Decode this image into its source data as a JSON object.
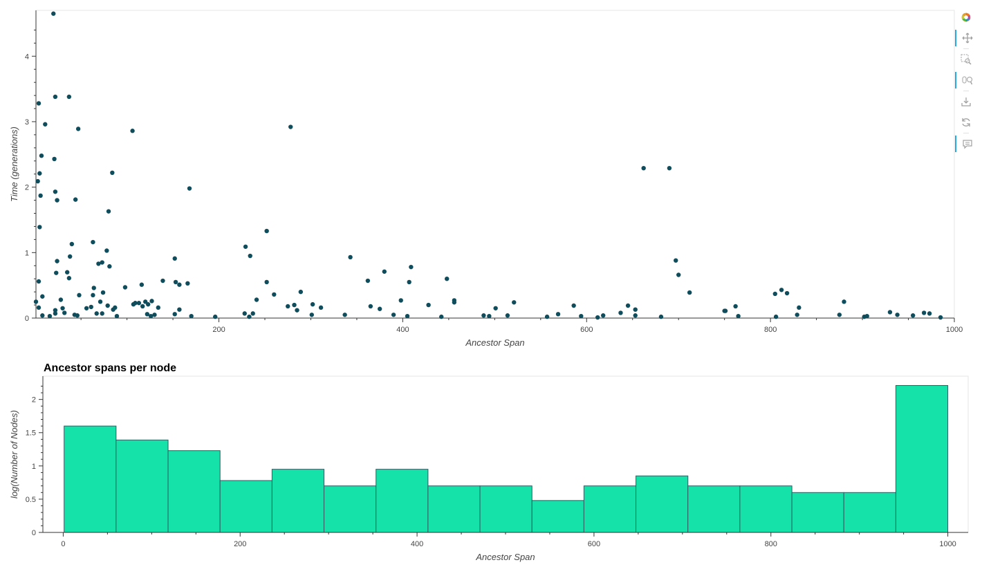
{
  "chart_data": [
    {
      "type": "scatter",
      "title": "",
      "xlabel": "Ancestor Span",
      "ylabel": "Time (generations)",
      "xlim": [
        1,
        1000
      ],
      "ylim": [
        0,
        4.7
      ],
      "x_ticks": [
        "200",
        "400",
        "600",
        "800",
        "1000"
      ],
      "y_ticks": [
        "0",
        "1",
        "2",
        "3",
        "4"
      ],
      "grid": false,
      "point_color": "#0f4d5c",
      "points": [
        [
          20,
          4.65
        ],
        [
          4,
          3.28
        ],
        [
          22,
          3.38
        ],
        [
          37,
          3.38
        ],
        [
          11,
          2.96
        ],
        [
          47,
          2.89
        ],
        [
          106,
          2.86
        ],
        [
          278,
          2.92
        ],
        [
          7,
          2.48
        ],
        [
          21,
          2.43
        ],
        [
          5,
          2.21
        ],
        [
          3,
          2.09
        ],
        [
          84,
          2.22
        ],
        [
          6,
          1.87
        ],
        [
          22,
          1.93
        ],
        [
          24,
          1.8
        ],
        [
          44,
          1.81
        ],
        [
          168,
          1.98
        ],
        [
          80,
          1.63
        ],
        [
          5,
          1.39
        ],
        [
          40,
          1.13
        ],
        [
          63,
          1.16
        ],
        [
          229,
          1.09
        ],
        [
          252,
          1.33
        ],
        [
          662,
          2.29
        ],
        [
          690,
          2.29
        ],
        [
          78,
          1.03
        ],
        [
          24,
          0.87
        ],
        [
          38,
          0.94
        ],
        [
          73,
          0.85
        ],
        [
          69,
          0.83
        ],
        [
          81,
          0.79
        ],
        [
          152,
          0.91
        ],
        [
          234,
          0.95
        ],
        [
          343,
          0.93
        ],
        [
          697,
          0.88
        ],
        [
          23,
          0.69
        ],
        [
          35,
          0.7
        ],
        [
          37,
          0.61
        ],
        [
          380,
          0.71
        ],
        [
          409,
          0.78
        ],
        [
          700,
          0.66
        ],
        [
          4,
          0.56
        ],
        [
          64,
          0.46
        ],
        [
          98,
          0.47
        ],
        [
          116,
          0.51
        ],
        [
          139,
          0.57
        ],
        [
          153,
          0.55
        ],
        [
          157,
          0.51
        ],
        [
          166,
          0.53
        ],
        [
          252,
          0.55
        ],
        [
          362,
          0.57
        ],
        [
          407,
          0.55
        ],
        [
          448,
          0.6
        ],
        [
          8,
          0.33
        ],
        [
          28,
          0.28
        ],
        [
          48,
          0.35
        ],
        [
          63,
          0.35
        ],
        [
          74,
          0.39
        ],
        [
          127,
          0.26
        ],
        [
          120,
          0.25
        ],
        [
          241,
          0.28
        ],
        [
          260,
          0.36
        ],
        [
          289,
          0.4
        ],
        [
          398,
          0.27
        ],
        [
          456,
          0.27
        ],
        [
          712,
          0.39
        ],
        [
          805,
          0.37
        ],
        [
          812,
          0.43
        ],
        [
          818,
          0.38
        ],
        [
          1,
          0.25
        ],
        [
          4,
          0.16
        ],
        [
          22,
          0.12
        ],
        [
          30,
          0.15
        ],
        [
          56,
          0.15
        ],
        [
          61,
          0.17
        ],
        [
          71,
          0.25
        ],
        [
          79,
          0.19
        ],
        [
          87,
          0.16
        ],
        [
          85,
          0.13
        ],
        [
          107,
          0.21
        ],
        [
          109,
          0.23
        ],
        [
          113,
          0.23
        ],
        [
          117,
          0.18
        ],
        [
          123,
          0.21
        ],
        [
          134,
          0.16
        ],
        [
          157,
          0.13
        ],
        [
          282,
          0.2
        ],
        [
          275,
          0.18
        ],
        [
          302,
          0.21
        ],
        [
          311,
          0.16
        ],
        [
          365,
          0.18
        ],
        [
          375,
          0.14
        ],
        [
          428,
          0.2
        ],
        [
          456,
          0.24
        ],
        [
          501,
          0.15
        ],
        [
          521,
          0.24
        ],
        [
          586,
          0.19
        ],
        [
          645,
          0.19
        ],
        [
          653,
          0.13
        ],
        [
          751,
          0.11
        ],
        [
          762,
          0.18
        ],
        [
          831,
          0.16
        ],
        [
          880,
          0.25
        ],
        [
          750,
          0.11
        ],
        [
          285,
          0.12
        ],
        [
          8,
          0.04
        ],
        [
          16,
          0.03
        ],
        [
          22,
          0.07
        ],
        [
          32,
          0.08
        ],
        [
          43,
          0.05
        ],
        [
          46,
          0.04
        ],
        [
          67,
          0.07
        ],
        [
          73,
          0.07
        ],
        [
          89,
          0.03
        ],
        [
          122,
          0.06
        ],
        [
          130,
          0.05
        ],
        [
          152,
          0.06
        ],
        [
          170,
          0.03
        ],
        [
          196,
          0.02
        ],
        [
          228,
          0.07
        ],
        [
          237,
          0.07
        ],
        [
          233,
          0.02
        ],
        [
          301,
          0.05
        ],
        [
          337,
          0.05
        ],
        [
          390,
          0.05
        ],
        [
          405,
          0.03
        ],
        [
          442,
          0.02
        ],
        [
          488,
          0.04
        ],
        [
          494,
          0.03
        ],
        [
          514,
          0.04
        ],
        [
          557,
          0.02
        ],
        [
          569,
          0.06
        ],
        [
          594,
          0.03
        ],
        [
          612,
          0.01
        ],
        [
          618,
          0.04
        ],
        [
          637,
          0.08
        ],
        [
          653,
          0.04
        ],
        [
          681,
          0.02
        ],
        [
          765,
          0.03
        ],
        [
          806,
          0.02
        ],
        [
          829,
          0.05
        ],
        [
          875,
          0.05
        ],
        [
          902,
          0.02
        ],
        [
          930,
          0.09
        ],
        [
          938,
          0.05
        ],
        [
          955,
          0.04
        ],
        [
          967,
          0.08
        ],
        [
          973,
          0.07
        ],
        [
          985,
          0.01
        ],
        [
          126,
          0.03
        ],
        [
          905,
          0.03
        ]
      ]
    },
    {
      "type": "bar",
      "title": "Ancestor spans per node",
      "xlabel": "Ancestor Span",
      "ylabel": "log(Number of Nodes)",
      "xlim": [
        -23,
        1023
      ],
      "ylim": [
        0,
        2.35
      ],
      "x_ticks": [
        "0",
        "200",
        "400",
        "600",
        "800",
        "1000"
      ],
      "y_ticks": [
        "0",
        "0.5",
        "1",
        "1.5",
        "2"
      ],
      "bar_color": "#14e2a8",
      "bin_edges": [
        1,
        59.76,
        118.53,
        177.29,
        236.06,
        294.82,
        353.59,
        412.35,
        471.12,
        529.88,
        588.65,
        647.41,
        706.18,
        764.94,
        823.71,
        882.47,
        941.24,
        1000
      ],
      "values": [
        1.6,
        1.39,
        1.23,
        0.78,
        0.95,
        0.7,
        0.95,
        0.7,
        0.7,
        0.48,
        0.7,
        0.85,
        0.7,
        0.7,
        0.6,
        0.6,
        2.21
      ]
    }
  ],
  "toolbar": {
    "tools": [
      {
        "name": "bokeh-logo-icon",
        "active": false
      },
      {
        "name": "pan-icon",
        "active": true
      },
      {
        "name": "box-zoom-icon",
        "active": false
      },
      {
        "name": "wheel-zoom-icon",
        "active": true
      },
      {
        "name": "save-icon",
        "active": false
      },
      {
        "name": "reset-icon",
        "active": false
      },
      {
        "name": "hover-icon",
        "active": true
      }
    ]
  }
}
